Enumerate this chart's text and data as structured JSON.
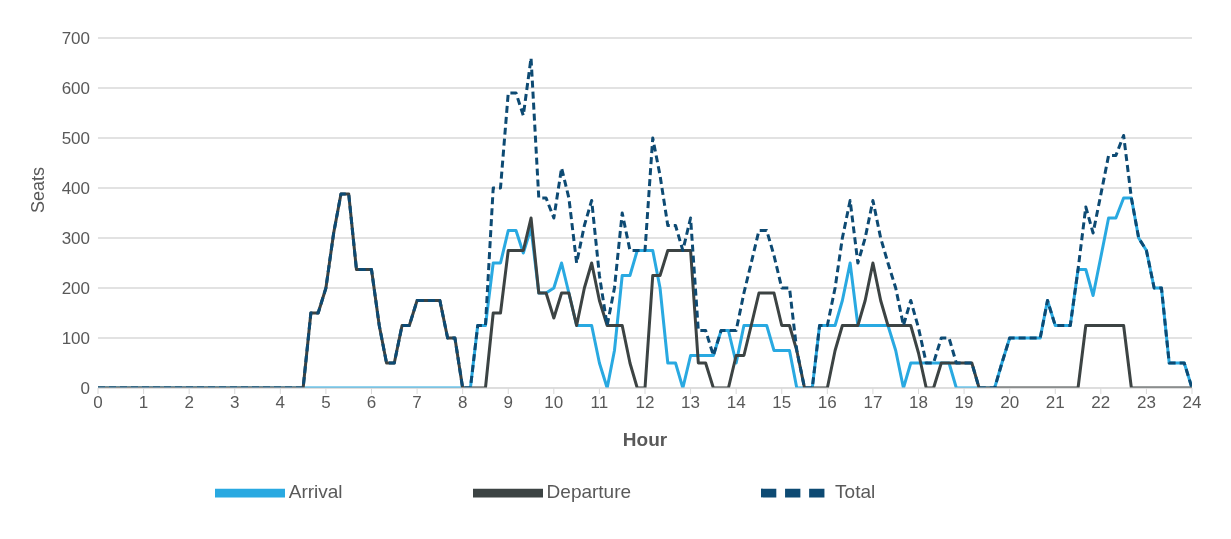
{
  "chart_data": {
    "type": "line",
    "xlabel": "Hour",
    "ylabel": "Seats",
    "x": [
      0,
      4.5,
      4.67,
      4.83,
      5,
      5.17,
      5.33,
      5.5,
      5.67,
      5.83,
      6,
      6.17,
      6.33,
      6.5,
      6.67,
      6.83,
      7,
      7.17,
      7.33,
      7.5,
      7.67,
      7.83,
      8,
      8.17,
      8.33,
      8.5,
      8.67,
      8.83,
      9,
      9.17,
      9.33,
      9.5,
      9.67,
      9.83,
      10,
      10.17,
      10.33,
      10.5,
      10.67,
      10.83,
      11,
      11.17,
      11.33,
      11.5,
      11.67,
      11.83,
      12,
      12.17,
      12.33,
      12.5,
      12.67,
      12.83,
      13,
      13.17,
      13.33,
      13.5,
      13.67,
      13.83,
      14,
      14.17,
      14.33,
      14.5,
      14.67,
      14.83,
      15,
      15.17,
      15.33,
      15.5,
      15.67,
      15.83,
      16,
      16.17,
      16.33,
      16.5,
      16.67,
      16.83,
      17,
      17.17,
      17.33,
      17.5,
      17.67,
      17.83,
      18,
      18.17,
      18.33,
      18.5,
      18.67,
      18.83,
      19,
      19.17,
      19.33,
      19.5,
      19.67,
      19.83,
      20,
      20.17,
      20.33,
      20.5,
      20.67,
      20.83,
      21,
      21.17,
      21.33,
      21.5,
      21.67,
      21.83,
      22,
      22.17,
      22.33,
      22.5,
      22.67,
      22.83,
      23,
      23.17,
      23.33,
      23.5,
      23.67,
      23.83,
      24
    ],
    "series": [
      {
        "name": "Arrival",
        "color": "#29a9e1",
        "line_style": "solid",
        "values": [
          0,
          0,
          0,
          0,
          0,
          0,
          0,
          0,
          0,
          0,
          0,
          0,
          0,
          0,
          0,
          0,
          0,
          0,
          0,
          0,
          0,
          0,
          0,
          0,
          125,
          125,
          250,
          250,
          315,
          315,
          270,
          320,
          190,
          190,
          200,
          250,
          190,
          125,
          125,
          125,
          50,
          0,
          75,
          225,
          225,
          275,
          275,
          275,
          200,
          50,
          50,
          0,
          65,
          65,
          65,
          65,
          115,
          115,
          50,
          125,
          125,
          125,
          125,
          75,
          75,
          75,
          0,
          0,
          0,
          125,
          125,
          125,
          175,
          250,
          125,
          125,
          125,
          125,
          125,
          75,
          0,
          50,
          50,
          50,
          50,
          50,
          50,
          0,
          0,
          0,
          0,
          0,
          0,
          50,
          100,
          100,
          100,
          100,
          100,
          175,
          125,
          125,
          125,
          237,
          237,
          185,
          262,
          340,
          340,
          380,
          380,
          300,
          275,
          200,
          200,
          50,
          50,
          50,
          0
        ]
      },
      {
        "name": "Departure",
        "color": "#3c4343",
        "line_style": "solid",
        "values": [
          0,
          0,
          150,
          150,
          200,
          310,
          388,
          388,
          237,
          237,
          237,
          125,
          50,
          50,
          125,
          125,
          175,
          175,
          175,
          175,
          100,
          100,
          0,
          0,
          0,
          0,
          150,
          150,
          275,
          275,
          275,
          340,
          190,
          190,
          140,
          190,
          190,
          125,
          200,
          250,
          175,
          125,
          125,
          125,
          50,
          0,
          0,
          225,
          225,
          275,
          275,
          275,
          275,
          50,
          50,
          0,
          0,
          0,
          65,
          65,
          125,
          190,
          190,
          190,
          125,
          125,
          75,
          0,
          0,
          0,
          0,
          75,
          125,
          125,
          125,
          175,
          250,
          175,
          125,
          125,
          125,
          125,
          70,
          0,
          0,
          50,
          50,
          50,
          50,
          50,
          0,
          0,
          0,
          0,
          0,
          0,
          0,
          0,
          0,
          0,
          0,
          0,
          0,
          0,
          125,
          125,
          125,
          125,
          125,
          125,
          0,
          0,
          0,
          0,
          0,
          0,
          0,
          0,
          0
        ]
      },
      {
        "name": "Total",
        "color": "#0d4a73",
        "line_style": "dashed",
        "values": [
          0,
          0,
          150,
          150,
          200,
          310,
          388,
          388,
          237,
          237,
          237,
          125,
          50,
          50,
          125,
          125,
          175,
          175,
          175,
          175,
          100,
          100,
          0,
          0,
          125,
          125,
          400,
          400,
          590,
          590,
          545,
          660,
          380,
          380,
          340,
          440,
          380,
          250,
          325,
          375,
          225,
          125,
          200,
          350,
          275,
          275,
          275,
          500,
          425,
          325,
          325,
          275,
          340,
          115,
          115,
          65,
          115,
          115,
          115,
          190,
          250,
          315,
          315,
          265,
          200,
          200,
          75,
          0,
          0,
          125,
          125,
          200,
          300,
          375,
          250,
          300,
          375,
          300,
          250,
          200,
          125,
          175,
          120,
          50,
          50,
          100,
          100,
          50,
          50,
          50,
          0,
          0,
          0,
          50,
          100,
          100,
          100,
          100,
          100,
          175,
          125,
          125,
          125,
          237,
          362,
          310,
          387,
          465,
          465,
          505,
          380,
          300,
          275,
          200,
          200,
          50,
          50,
          50,
          0
        ]
      }
    ],
    "xlim": [
      0,
      24
    ],
    "xticks": [
      0,
      1,
      2,
      3,
      4,
      5,
      6,
      7,
      8,
      9,
      10,
      11,
      12,
      13,
      14,
      15,
      16,
      17,
      18,
      19,
      20,
      21,
      22,
      23,
      24
    ],
    "ylim": [
      0,
      700
    ],
    "yticks": [
      0,
      100,
      200,
      300,
      400,
      500,
      600,
      700
    ],
    "grid": "y",
    "legend": "bottom",
    "marker": "none"
  }
}
